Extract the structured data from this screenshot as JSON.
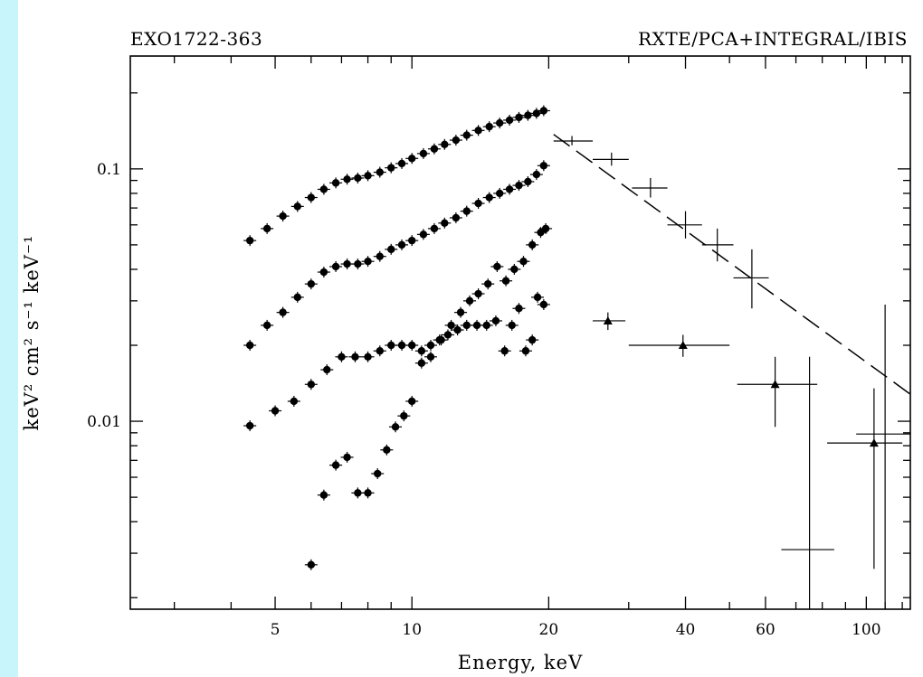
{
  "chart_data": {
    "type": "scatter",
    "title_left": "EXO1722-363",
    "title_right": "RXTE/PCA+INTEGRAL/IBIS",
    "xlabel": "Energy, keV",
    "ylabel": "keV² cm² s⁻¹ keV⁻¹",
    "xscale": "log",
    "yscale": "log",
    "xlim": [
      2.4,
      125
    ],
    "ylim": [
      0.0018,
      0.28
    ],
    "x_ticks": [
      5,
      10,
      20,
      40,
      60,
      100
    ],
    "y_ticks": [
      0.01,
      0.1
    ],
    "y_tick_labels": [
      "0.01",
      "0.1"
    ],
    "series": [
      {
        "marker": "circle",
        "points": [
          {
            "x": 4.4,
            "y": 0.052
          },
          {
            "x": 4.8,
            "y": 0.058
          },
          {
            "x": 5.2,
            "y": 0.065
          },
          {
            "x": 5.6,
            "y": 0.071
          },
          {
            "x": 6.0,
            "y": 0.077
          },
          {
            "x": 6.4,
            "y": 0.083
          },
          {
            "x": 6.8,
            "y": 0.088
          },
          {
            "x": 7.2,
            "y": 0.091
          },
          {
            "x": 7.6,
            "y": 0.092
          },
          {
            "x": 8.0,
            "y": 0.094
          },
          {
            "x": 8.5,
            "y": 0.097
          },
          {
            "x": 9.0,
            "y": 0.101
          },
          {
            "x": 9.5,
            "y": 0.105
          },
          {
            "x": 10.0,
            "y": 0.11
          },
          {
            "x": 10.6,
            "y": 0.115
          },
          {
            "x": 11.2,
            "y": 0.12
          },
          {
            "x": 11.8,
            "y": 0.125
          },
          {
            "x": 12.5,
            "y": 0.13
          },
          {
            "x": 13.2,
            "y": 0.136
          },
          {
            "x": 14.0,
            "y": 0.142
          },
          {
            "x": 14.8,
            "y": 0.147
          },
          {
            "x": 15.6,
            "y": 0.152
          },
          {
            "x": 16.4,
            "y": 0.156
          },
          {
            "x": 17.2,
            "y": 0.16
          },
          {
            "x": 18.0,
            "y": 0.163
          },
          {
            "x": 18.8,
            "y": 0.166
          },
          {
            "x": 19.5,
            "y": 0.17
          }
        ]
      },
      {
        "marker": "circle",
        "points": [
          {
            "x": 4.4,
            "y": 0.02
          },
          {
            "x": 4.8,
            "y": 0.024
          },
          {
            "x": 5.2,
            "y": 0.027
          },
          {
            "x": 5.6,
            "y": 0.031
          },
          {
            "x": 6.0,
            "y": 0.035
          },
          {
            "x": 6.4,
            "y": 0.039
          },
          {
            "x": 6.8,
            "y": 0.041
          },
          {
            "x": 7.2,
            "y": 0.042
          },
          {
            "x": 7.6,
            "y": 0.042
          },
          {
            "x": 8.0,
            "y": 0.043
          },
          {
            "x": 8.5,
            "y": 0.045
          },
          {
            "x": 9.0,
            "y": 0.048
          },
          {
            "x": 9.5,
            "y": 0.05
          },
          {
            "x": 10.0,
            "y": 0.052
          },
          {
            "x": 10.6,
            "y": 0.055
          },
          {
            "x": 11.2,
            "y": 0.058
          },
          {
            "x": 11.8,
            "y": 0.061
          },
          {
            "x": 12.5,
            "y": 0.064
          },
          {
            "x": 13.2,
            "y": 0.068
          },
          {
            "x": 14.0,
            "y": 0.073
          },
          {
            "x": 14.8,
            "y": 0.077
          },
          {
            "x": 15.6,
            "y": 0.08
          },
          {
            "x": 16.4,
            "y": 0.083
          },
          {
            "x": 17.2,
            "y": 0.086
          },
          {
            "x": 18.0,
            "y": 0.089
          },
          {
            "x": 18.8,
            "y": 0.095
          },
          {
            "x": 19.5,
            "y": 0.103
          }
        ]
      },
      {
        "marker": "circle",
        "points": [
          {
            "x": 4.4,
            "y": 0.0096
          },
          {
            "x": 5.0,
            "y": 0.011
          },
          {
            "x": 5.5,
            "y": 0.012
          },
          {
            "x": 6.0,
            "y": 0.014
          },
          {
            "x": 6.5,
            "y": 0.016
          },
          {
            "x": 7.0,
            "y": 0.018
          },
          {
            "x": 7.5,
            "y": 0.018
          },
          {
            "x": 8.0,
            "y": 0.018
          },
          {
            "x": 8.5,
            "y": 0.019
          },
          {
            "x": 9.0,
            "y": 0.02
          },
          {
            "x": 9.5,
            "y": 0.02
          },
          {
            "x": 10.0,
            "y": 0.02
          },
          {
            "x": 10.5,
            "y": 0.019
          },
          {
            "x": 11.0,
            "y": 0.02
          },
          {
            "x": 11.5,
            "y": 0.021
          },
          {
            "x": 12.0,
            "y": 0.022
          },
          {
            "x": 12.6,
            "y": 0.023
          },
          {
            "x": 13.2,
            "y": 0.024
          },
          {
            "x": 13.9,
            "y": 0.024
          },
          {
            "x": 14.6,
            "y": 0.024
          },
          {
            "x": 15.3,
            "y": 0.025
          },
          {
            "x": 16.0,
            "y": 0.019
          },
          {
            "x": 16.6,
            "y": 0.024
          },
          {
            "x": 17.2,
            "y": 0.028
          },
          {
            "x": 17.8,
            "y": 0.019
          },
          {
            "x": 18.4,
            "y": 0.021
          },
          {
            "x": 18.9,
            "y": 0.031
          },
          {
            "x": 19.5,
            "y": 0.029
          }
        ]
      },
      {
        "marker": "circle",
        "points": [
          {
            "x": 6.0,
            "y": 0.0027
          },
          {
            "x": 6.4,
            "y": 0.0051
          },
          {
            "x": 6.8,
            "y": 0.0067
          },
          {
            "x": 7.2,
            "y": 0.0072
          },
          {
            "x": 7.6,
            "y": 0.0052
          },
          {
            "x": 8.0,
            "y": 0.0052
          },
          {
            "x": 8.4,
            "y": 0.0062
          },
          {
            "x": 8.8,
            "y": 0.0077
          },
          {
            "x": 9.2,
            "y": 0.0095
          },
          {
            "x": 9.6,
            "y": 0.0105
          },
          {
            "x": 10.0,
            "y": 0.012
          },
          {
            "x": 10.5,
            "y": 0.017
          },
          {
            "x": 11.0,
            "y": 0.018
          },
          {
            "x": 11.6,
            "y": 0.021
          },
          {
            "x": 12.2,
            "y": 0.024
          },
          {
            "x": 12.8,
            "y": 0.027
          },
          {
            "x": 13.4,
            "y": 0.03
          },
          {
            "x": 14.0,
            "y": 0.032
          },
          {
            "x": 14.7,
            "y": 0.035
          },
          {
            "x": 15.4,
            "y": 0.041
          },
          {
            "x": 16.1,
            "y": 0.036
          },
          {
            "x": 16.8,
            "y": 0.04
          },
          {
            "x": 17.6,
            "y": 0.043
          },
          {
            "x": 18.4,
            "y": 0.05
          },
          {
            "x": 19.2,
            "y": 0.056
          },
          {
            "x": 19.7,
            "y": 0.058
          }
        ]
      },
      {
        "marker": "cross",
        "points": [
          {
            "x": 22.5,
            "y": 0.129,
            "xlo": 20.5,
            "xhi": 25.0,
            "ylo": 0.124,
            "yhi": 0.135
          },
          {
            "x": 27.5,
            "y": 0.109,
            "xlo": 25.0,
            "xhi": 30.0,
            "ylo": 0.103,
            "yhi": 0.116
          },
          {
            "x": 33.5,
            "y": 0.084,
            "xlo": 30.5,
            "xhi": 36.5,
            "ylo": 0.077,
            "yhi": 0.092
          },
          {
            "x": 40.0,
            "y": 0.06,
            "xlo": 36.5,
            "xhi": 43.5,
            "ylo": 0.053,
            "yhi": 0.068
          },
          {
            "x": 47.0,
            "y": 0.05,
            "xlo": 43.5,
            "xhi": 51.0,
            "ylo": 0.043,
            "yhi": 0.058
          },
          {
            "x": 56.0,
            "y": 0.037,
            "xlo": 51.0,
            "xhi": 61.0,
            "ylo": 0.028,
            "yhi": 0.048
          },
          {
            "x": 75.0,
            "y": 0.0031,
            "xlo": 65.0,
            "xhi": 85.0,
            "ylo": 0.0018,
            "yhi": 0.018
          },
          {
            "x": 110.0,
            "y": 0.0089,
            "xlo": 95.0,
            "xhi": 125.0,
            "ylo": 0.0018,
            "yhi": 0.029
          }
        ]
      },
      {
        "marker": "triangle",
        "points": [
          {
            "x": 27.0,
            "y": 0.025,
            "xlo": 25.0,
            "xhi": 29.5,
            "ylo": 0.023,
            "yhi": 0.027
          },
          {
            "x": 39.5,
            "y": 0.02,
            "xlo": 30.0,
            "xhi": 50.0,
            "ylo": 0.018,
            "yhi": 0.022
          },
          {
            "x": 63.0,
            "y": 0.014,
            "xlo": 52.0,
            "xhi": 78.0,
            "ylo": 0.0095,
            "yhi": 0.018
          },
          {
            "x": 104.0,
            "y": 0.0082,
            "xlo": 82.0,
            "xhi": 120.0,
            "ylo": 0.0026,
            "yhi": 0.0135
          }
        ]
      }
    ],
    "fit_line": {
      "style": "dashed",
      "x": [
        20.5,
        125
      ],
      "y": [
        0.137,
        0.0128
      ]
    }
  }
}
